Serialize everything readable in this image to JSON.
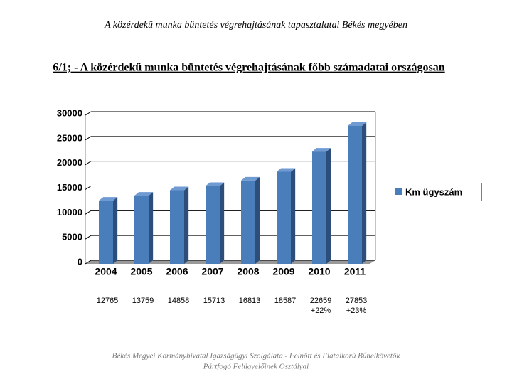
{
  "header": {
    "title": "A közérdekű munka büntetés végrehajtásának tapasztalatai Békés megyében",
    "subtitle": "6/1; - A közérdekű munka büntetés végrehajtásának főbb számadatai országosan"
  },
  "chart_data": {
    "type": "bar3d",
    "categories": [
      "2004",
      "2005",
      "2006",
      "2007",
      "2008",
      "2009",
      "2010",
      "2011"
    ],
    "series": [
      {
        "name": "Km ügyszám",
        "color": "#4a7ebb",
        "values": [
          12765,
          13759,
          14858,
          15713,
          16813,
          18587,
          22659,
          27853
        ]
      }
    ],
    "growth_labels": [
      null,
      null,
      null,
      null,
      null,
      null,
      "+22%",
      "+23%"
    ],
    "ylim": [
      0,
      30000
    ],
    "yticks": [
      0,
      5000,
      10000,
      15000,
      20000,
      25000,
      30000
    ],
    "grid": true,
    "legend": "right"
  },
  "footer": {
    "lines": [
      "Békés Megyei Kormányhivatal Igazságügyi Szolgálata - Felnőtt és Fiatalkorú Bűnelkövetők",
      "Pártfogó Felügyelőinek Osztályai"
    ]
  }
}
